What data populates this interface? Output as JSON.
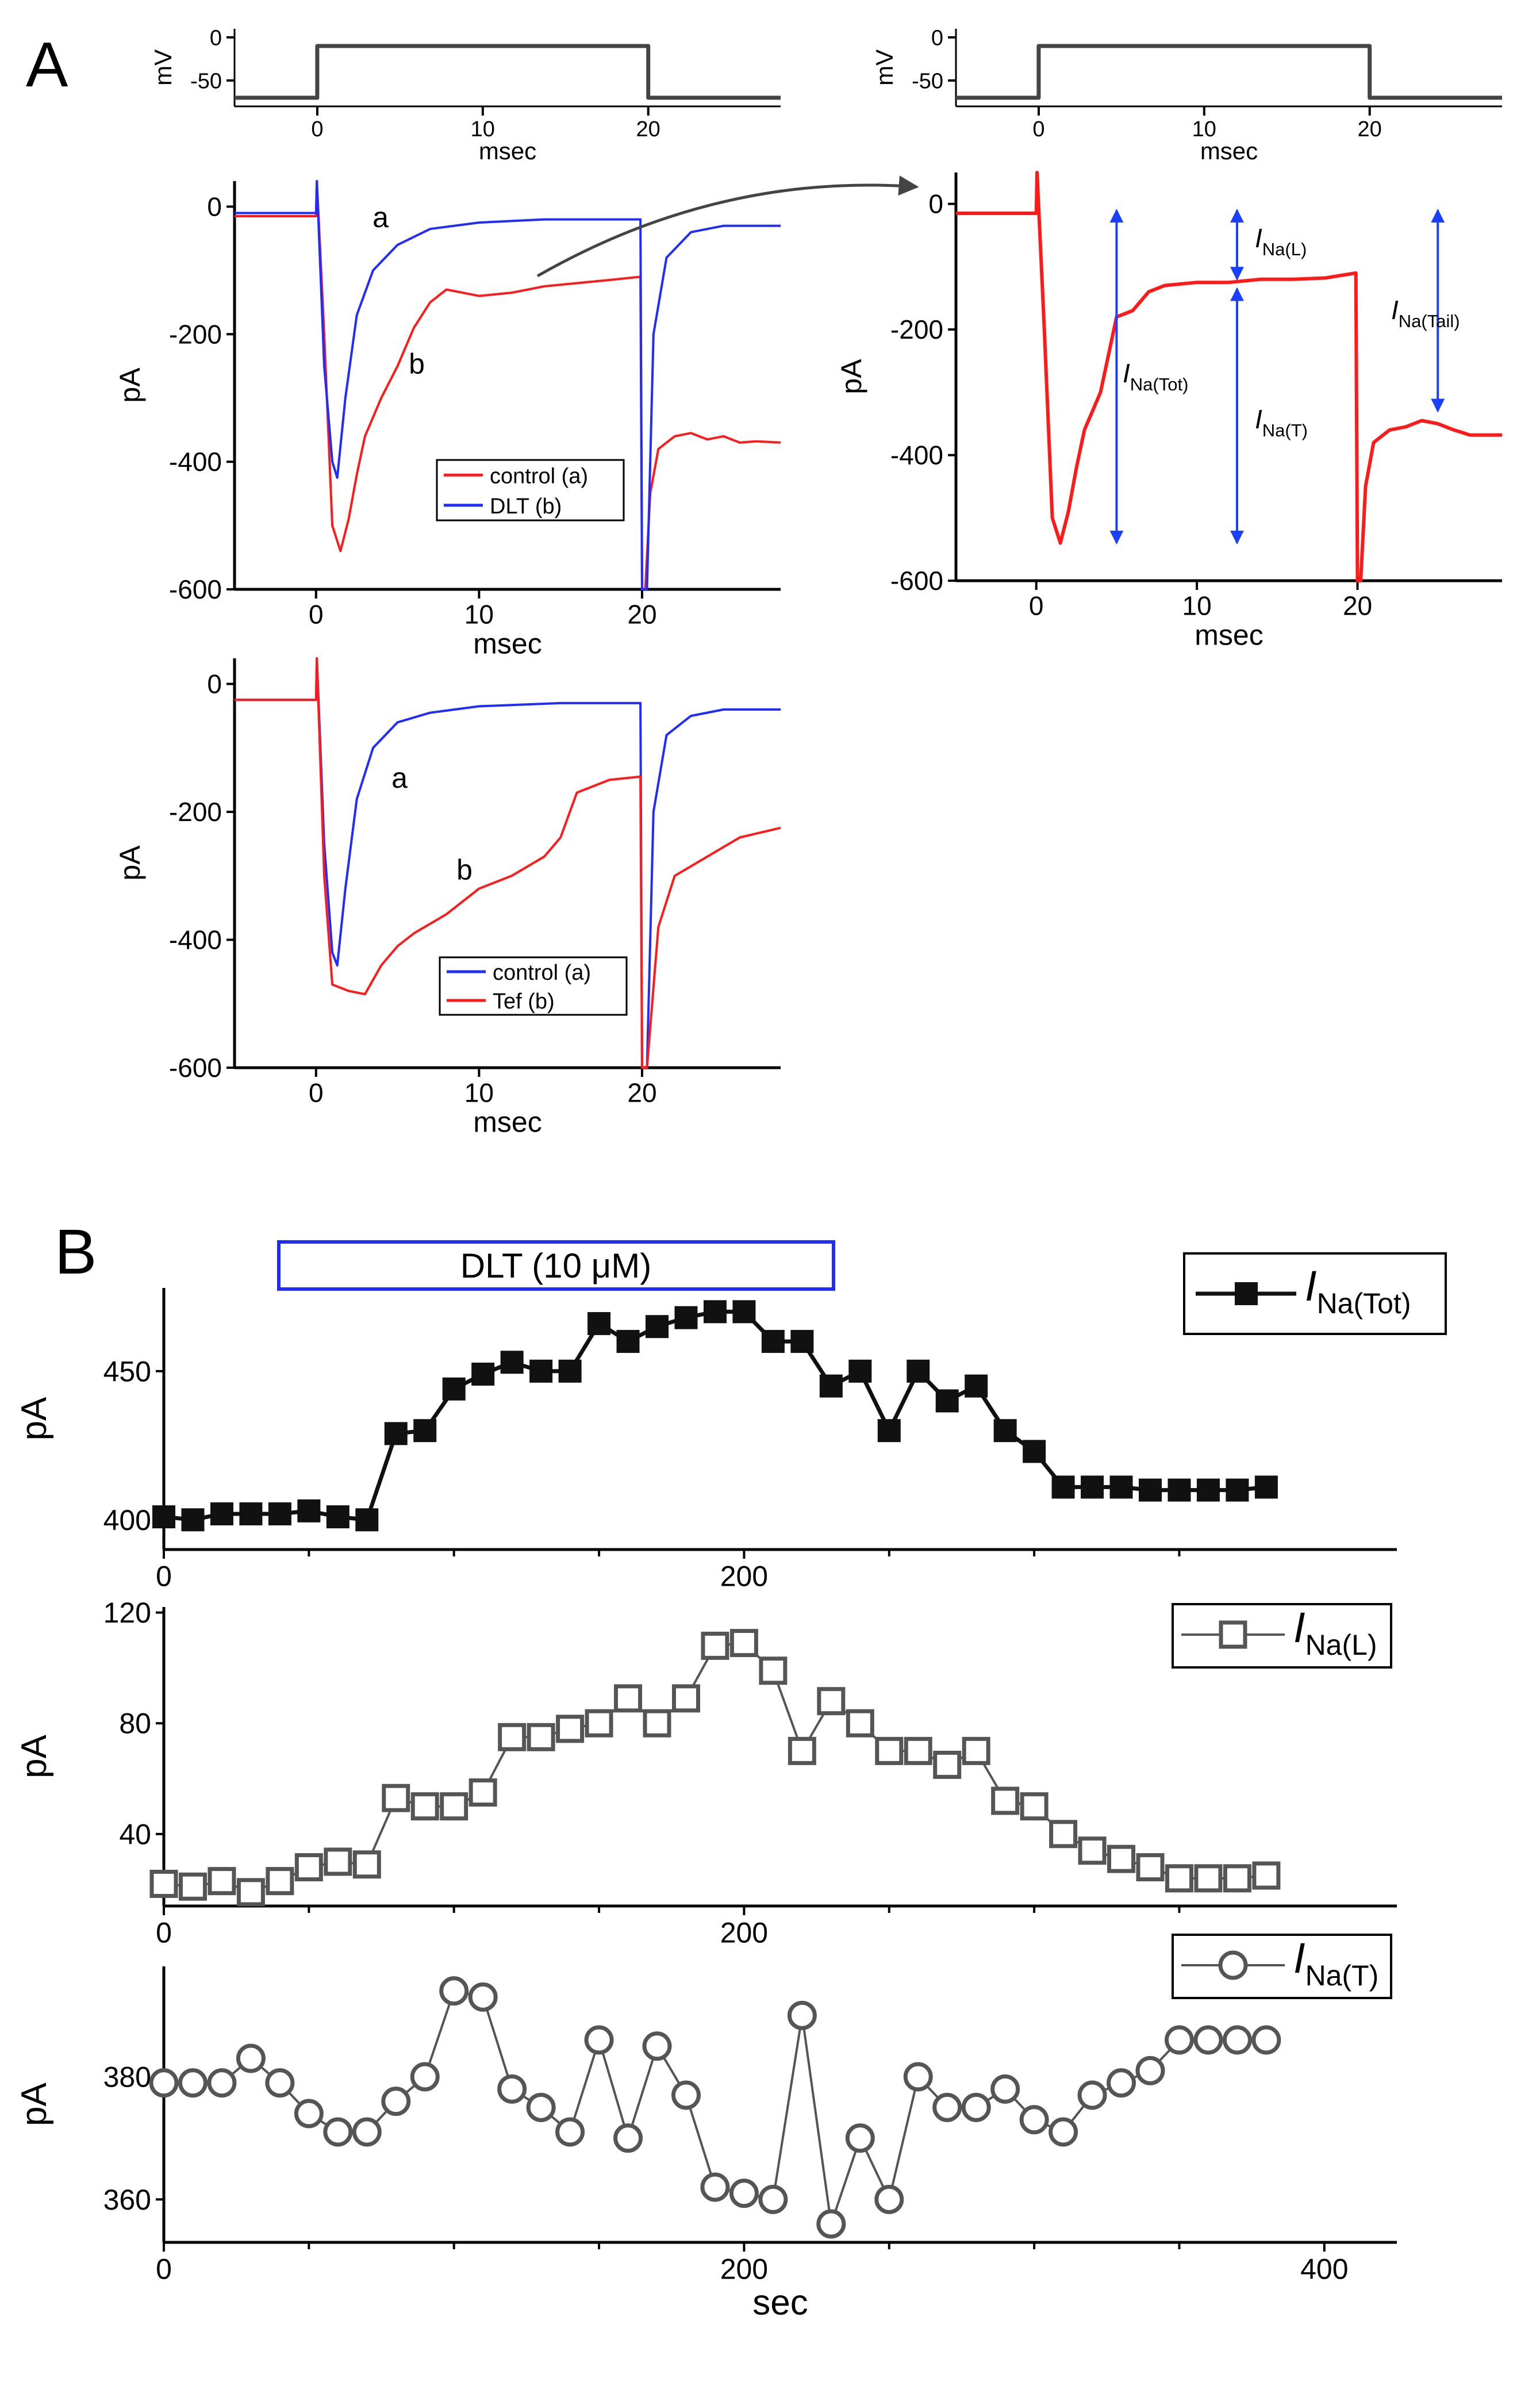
{
  "figure": {
    "panel_a_label": "A",
    "panel_b_label": "B",
    "drug_bar_label": "DLT (10 μM)",
    "colors": {
      "control": "#ff1a1a",
      "drug": "#1f2bff",
      "black": "#111111",
      "gray": "#555555",
      "arrow_blue": "#1a40ff",
      "protocol": "#444444"
    }
  },
  "chart_data": [
    {
      "id": "protocol-left",
      "type": "line",
      "title": "",
      "xlabel": "msec",
      "ylabel": "mV",
      "xlim": [
        -5,
        28
      ],
      "ylim": [
        -80,
        10
      ],
      "xticks": [
        0,
        10,
        20
      ],
      "yticks": [
        0,
        -50
      ],
      "series": [
        {
          "name": "voltage",
          "x": [
            -5,
            0,
            0,
            20,
            20,
            28
          ],
          "y": [
            -70,
            -70,
            -10,
            -10,
            -70,
            -70
          ]
        }
      ]
    },
    {
      "id": "protocol-right",
      "type": "line",
      "title": "",
      "xlabel": "msec",
      "ylabel": "mV",
      "xlim": [
        -5,
        28
      ],
      "ylim": [
        -80,
        10
      ],
      "xticks": [
        0,
        10,
        20
      ],
      "yticks": [
        0,
        -50
      ],
      "series": [
        {
          "name": "voltage",
          "x": [
            -5,
            0,
            0,
            20,
            20,
            28
          ],
          "y": [
            -70,
            -70,
            -10,
            -10,
            -70,
            -70
          ]
        }
      ]
    },
    {
      "id": "trace-dlt",
      "type": "line",
      "xlabel": "msec",
      "ylabel": "pA",
      "xlim": [
        -5,
        28.5
      ],
      "ylim": [
        -600,
        40
      ],
      "xticks": [
        0,
        10,
        20
      ],
      "yticks": [
        0,
        -200,
        -400,
        -600
      ],
      "legend": [
        "control (a)",
        "DLT (b)"
      ],
      "legend_position": "lower-center",
      "annotations": [
        "a",
        "b"
      ],
      "series": [
        {
          "name": "control (a)",
          "x": [
            -5,
            0,
            0.05,
            0.5,
            1.0,
            1.5,
            2.0,
            2.5,
            3.0,
            4.0,
            5.0,
            6.0,
            7.0,
            8.0,
            10.0,
            12.0,
            14.0,
            16.0,
            18.0,
            19.9,
            20.0,
            20.2,
            20.5,
            21.0,
            22.0,
            23.0,
            24.0,
            25.0,
            26.0,
            27.0,
            28.5
          ],
          "y": [
            -15,
            -15,
            40,
            -200,
            -500,
            -540,
            -490,
            -420,
            -360,
            -300,
            -250,
            -190,
            -150,
            -130,
            -140,
            -135,
            -125,
            -120,
            -115,
            -110,
            -600,
            -600,
            -450,
            -380,
            -360,
            -355,
            -365,
            -360,
            -370,
            -368,
            -370
          ]
        },
        {
          "name": "DLT (b)",
          "x": [
            -5,
            0,
            0.05,
            0.5,
            1.0,
            1.3,
            1.8,
            2.5,
            3.5,
            5.0,
            7.0,
            10.0,
            14.0,
            19.9,
            20.0,
            20.3,
            20.7,
            21.5,
            23.0,
            25.0,
            28.5
          ],
          "y": [
            -10,
            -10,
            40,
            -250,
            -400,
            -425,
            -300,
            -170,
            -100,
            -60,
            -35,
            -25,
            -20,
            -20,
            -600,
            -600,
            -200,
            -80,
            -40,
            -30,
            -30
          ]
        }
      ]
    },
    {
      "id": "trace-tef",
      "type": "line",
      "xlabel": "msec",
      "ylabel": "pA",
      "xlim": [
        -5,
        28.5
      ],
      "ylim": [
        -600,
        40
      ],
      "xticks": [
        0,
        10,
        20
      ],
      "yticks": [
        0,
        -200,
        -400,
        -600
      ],
      "legend": [
        "control (a)",
        "Tef (b)"
      ],
      "legend_position": "lower-center",
      "annotations": [
        "a",
        "b"
      ],
      "series": [
        {
          "name": "control (a)",
          "x": [
            -5,
            0,
            0.05,
            0.5,
            1.0,
            1.3,
            1.8,
            2.5,
            3.5,
            5.0,
            7.0,
            10.0,
            15.0,
            19.9,
            20.0,
            20.3,
            20.7,
            21.5,
            23.0,
            25.0,
            28.5
          ],
          "y": [
            -25,
            -25,
            40,
            -250,
            -420,
            -440,
            -320,
            -180,
            -100,
            -60,
            -45,
            -35,
            -30,
            -30,
            -600,
            -600,
            -200,
            -80,
            -50,
            -40,
            -40
          ]
        },
        {
          "name": "Tef (b)",
          "x": [
            -5,
            0,
            0.05,
            0.5,
            1.0,
            2.0,
            3.0,
            4.0,
            5.0,
            6.0,
            8.0,
            10.0,
            12.0,
            14.0,
            15.0,
            16.0,
            18.0,
            19.9,
            20.0,
            20.3,
            21.0,
            22.0,
            24.0,
            26.0,
            28.5
          ],
          "y": [
            -25,
            -25,
            40,
            -300,
            -470,
            -480,
            -485,
            -440,
            -410,
            -390,
            -360,
            -320,
            -300,
            -270,
            -240,
            -170,
            -150,
            -145,
            -600,
            -600,
            -380,
            -300,
            -270,
            -240,
            -225
          ]
        }
      ]
    },
    {
      "id": "trace-annotated",
      "type": "line",
      "xlabel": "msec",
      "ylabel": "pA",
      "xlim": [
        -5,
        29
      ],
      "ylim": [
        -600,
        50
      ],
      "xticks": [
        0,
        10,
        20
      ],
      "yticks": [
        0,
        -200,
        -400,
        -600
      ],
      "annotations": [
        {
          "label": "I",
          "subscript": "Na(Tot)",
          "x": 5,
          "y1": -10,
          "y2": -540
        },
        {
          "label": "I",
          "subscript": "Na(L)",
          "x": 12.5,
          "y1": -10,
          "y2": -120
        },
        {
          "label": "I",
          "subscript": "Na(T)",
          "x": 12.5,
          "y1": -135,
          "y2": -540
        },
        {
          "label": "I",
          "subscript": "Na(Tail)",
          "x": 25,
          "y1": -10,
          "y2": -330
        }
      ],
      "series": [
        {
          "name": "control",
          "x": [
            -5,
            0,
            0.05,
            0.5,
            1.0,
            1.5,
            2.0,
            2.5,
            3.0,
            4.0,
            5.0,
            6.0,
            7.0,
            8.0,
            10.0,
            12.0,
            14.0,
            16.0,
            18.0,
            19.9,
            20.0,
            20.2,
            20.5,
            21.0,
            22.0,
            23.0,
            24.0,
            25.0,
            26.0,
            27.0,
            29.0
          ],
          "y": [
            -15,
            -15,
            50,
            -200,
            -500,
            -540,
            -490,
            -420,
            -360,
            -300,
            -180,
            -170,
            -140,
            -130,
            -125,
            -125,
            -120,
            -120,
            -118,
            -110,
            -600,
            -600,
            -450,
            -380,
            -360,
            -355,
            -345,
            -350,
            -360,
            -368,
            -368
          ]
        }
      ]
    },
    {
      "id": "b-tot",
      "type": "line",
      "xlabel": "",
      "ylabel": "pA",
      "xlim": [
        0,
        425
      ],
      "ylim": [
        390,
        478
      ],
      "xticks": [
        0,
        200
      ],
      "yticks": [
        400,
        450
      ],
      "legend": [
        "INa(Tot)"
      ],
      "legend_position": "top-right",
      "series": [
        {
          "name": "INa(Tot)",
          "marker": "filled-square",
          "x": [
            0,
            10,
            20,
            30,
            40,
            50,
            60,
            70,
            80,
            90,
            100,
            110,
            120,
            130,
            140,
            150,
            160,
            170,
            180,
            190,
            200,
            210,
            220,
            230,
            240,
            250,
            260,
            270,
            280,
            290,
            300,
            310,
            320,
            330,
            340,
            350,
            360,
            370,
            380
          ],
          "y": [
            401,
            400,
            402,
            402,
            402,
            403,
            401,
            400,
            429,
            430,
            444,
            449,
            453,
            450,
            450,
            466,
            460,
            465,
            468,
            470,
            470,
            460,
            460,
            445,
            450,
            430,
            450,
            440,
            445,
            430,
            423,
            411,
            411,
            411,
            410,
            410,
            410,
            410,
            411
          ]
        }
      ]
    },
    {
      "id": "b-late",
      "type": "line",
      "xlabel": "",
      "ylabel": "pA",
      "xlim": [
        0,
        425
      ],
      "ylim": [
        14,
        122
      ],
      "xticks": [
        0,
        200
      ],
      "yticks": [
        40,
        80,
        120
      ],
      "legend": [
        "INa(L)"
      ],
      "legend_position": "top-right",
      "series": [
        {
          "name": "INa(L)",
          "marker": "open-square",
          "x": [
            0,
            10,
            20,
            30,
            40,
            50,
            60,
            70,
            80,
            90,
            100,
            110,
            120,
            130,
            140,
            150,
            160,
            170,
            180,
            190,
            200,
            210,
            220,
            230,
            240,
            250,
            260,
            270,
            280,
            290,
            300,
            310,
            320,
            330,
            340,
            350,
            360,
            370,
            380
          ],
          "y": [
            22,
            21,
            23,
            19,
            23,
            28,
            30,
            29,
            53,
            50,
            50,
            55,
            75,
            75,
            78,
            80,
            89,
            80,
            89,
            108,
            109,
            99,
            70,
            88,
            80,
            70,
            70,
            65,
            70,
            52,
            50,
            40,
            34,
            31,
            28,
            24,
            24,
            24,
            25
          ]
        }
      ]
    },
    {
      "id": "b-transient",
      "type": "line",
      "xlabel": "sec",
      "ylabel": "pA",
      "xlim": [
        0,
        425
      ],
      "ylim": [
        353,
        398
      ],
      "xticks": [
        0,
        200,
        400
      ],
      "yticks": [
        360,
        380
      ],
      "legend": [
        "INa(T)"
      ],
      "legend_position": "top-right",
      "series": [
        {
          "name": "INa(T)",
          "marker": "open-circle",
          "x": [
            0,
            10,
            20,
            30,
            40,
            50,
            60,
            70,
            80,
            90,
            100,
            110,
            120,
            130,
            140,
            150,
            160,
            170,
            180,
            190,
            200,
            210,
            220,
            230,
            240,
            250,
            260,
            270,
            280,
            290,
            300,
            310,
            320,
            330,
            340,
            350,
            360,
            370,
            380
          ],
          "y": [
            379,
            379,
            379,
            383,
            379,
            374,
            371,
            371,
            376,
            380,
            394,
            393,
            378,
            375,
            371,
            386,
            370,
            385,
            377,
            362,
            361,
            360,
            390,
            356,
            370,
            360,
            380,
            375,
            375,
            378,
            373,
            371,
            377,
            379,
            381,
            386,
            386,
            386,
            386
          ]
        }
      ]
    }
  ]
}
